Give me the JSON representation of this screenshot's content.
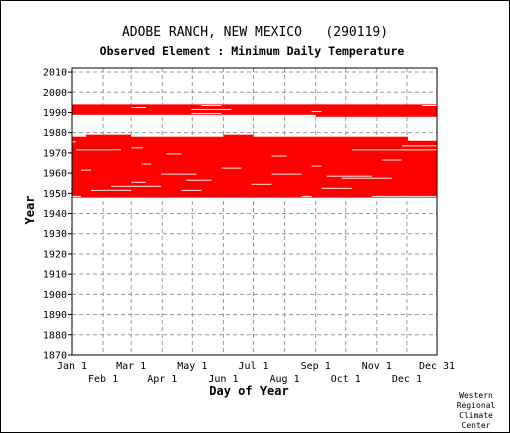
{
  "chart_data": {
    "type": "heatmap",
    "title": "ADOBE RANCH, NEW MEXICO   (290119)",
    "subtitle": "Observed Element : Minimum Daily Temperature",
    "xlabel": "Day of Year",
    "ylabel": "Year",
    "x_range": [
      1,
      365
    ],
    "ylim": [
      1870,
      2012
    ],
    "y_ticks": [
      1870,
      1880,
      1890,
      1900,
      1910,
      1920,
      1930,
      1940,
      1950,
      1960,
      1970,
      1980,
      1990,
      2000,
      2010
    ],
    "x_ticks_top_row": [
      {
        "label": "Jan 1",
        "day": 1
      },
      {
        "label": "Mar 1",
        "day": 60
      },
      {
        "label": "May 1",
        "day": 121
      },
      {
        "label": "Jul 1",
        "day": 182
      },
      {
        "label": "Sep 1",
        "day": 244
      },
      {
        "label": "Nov 1",
        "day": 305
      },
      {
        "label": "Dec 31",
        "day": 365
      }
    ],
    "x_ticks_bottom_row": [
      {
        "label": "Feb 1",
        "day": 32
      },
      {
        "label": "Apr 1",
        "day": 91
      },
      {
        "label": "Jun 1",
        "day": 152
      },
      {
        "label": "Aug 1",
        "day": 213
      },
      {
        "label": "Oct 1",
        "day": 274
      },
      {
        "label": "Dec 1",
        "day": 335
      }
    ],
    "grid": true,
    "data_color": "#ff0000",
    "observed_periods": [
      {
        "start_year": 1948,
        "start_day": 1,
        "end_year": 1948,
        "end_day": 365
      },
      {
        "start_year": 1949,
        "start_day": 1,
        "end_year": 1949,
        "end_day": 365
      },
      {
        "start_year": 1950,
        "start_day": 1,
        "end_year": 1950,
        "end_day": 365
      },
      {
        "start_year": 1951,
        "start_day": 1,
        "end_year": 1951,
        "end_day": 365
      },
      {
        "start_year": 1952,
        "start_day": 1,
        "end_year": 1952,
        "end_day": 365
      },
      {
        "start_year": 1953,
        "start_day": 1,
        "end_year": 1953,
        "end_day": 365
      },
      {
        "start_year": 1954,
        "start_day": 1,
        "end_year": 1954,
        "end_day": 365
      },
      {
        "start_year": 1955,
        "start_day": 1,
        "end_year": 1955,
        "end_day": 365
      },
      {
        "start_year": 1956,
        "start_day": 1,
        "end_year": 1956,
        "end_day": 365
      },
      {
        "start_year": 1957,
        "start_day": 1,
        "end_year": 1957,
        "end_day": 365
      },
      {
        "start_year": 1958,
        "start_day": 1,
        "end_year": 1958,
        "end_day": 365
      },
      {
        "start_year": 1959,
        "start_day": 1,
        "end_year": 1959,
        "end_day": 365
      },
      {
        "start_year": 1960,
        "start_day": 1,
        "end_year": 1960,
        "end_day": 365
      },
      {
        "start_year": 1961,
        "start_day": 1,
        "end_year": 1961,
        "end_day": 365
      },
      {
        "start_year": 1962,
        "start_day": 1,
        "end_year": 1962,
        "end_day": 365
      },
      {
        "start_year": 1963,
        "start_day": 1,
        "end_year": 1963,
        "end_day": 365
      },
      {
        "start_year": 1964,
        "start_day": 1,
        "end_year": 1964,
        "end_day": 365
      },
      {
        "start_year": 1965,
        "start_day": 1,
        "end_year": 1965,
        "end_day": 365
      },
      {
        "start_year": 1966,
        "start_day": 1,
        "end_year": 1966,
        "end_day": 365
      },
      {
        "start_year": 1967,
        "start_day": 1,
        "end_year": 1967,
        "end_day": 365
      },
      {
        "start_year": 1968,
        "start_day": 1,
        "end_year": 1968,
        "end_day": 365
      },
      {
        "start_year": 1969,
        "start_day": 1,
        "end_year": 1969,
        "end_day": 365
      },
      {
        "start_year": 1970,
        "start_day": 1,
        "end_year": 1970,
        "end_day": 365
      },
      {
        "start_year": 1971,
        "start_day": 1,
        "end_year": 1971,
        "end_day": 365
      },
      {
        "start_year": 1972,
        "start_day": 1,
        "end_year": 1972,
        "end_day": 365
      },
      {
        "start_year": 1973,
        "start_day": 1,
        "end_year": 1973,
        "end_day": 365
      },
      {
        "start_year": 1974,
        "start_day": 1,
        "end_year": 1974,
        "end_day": 365
      },
      {
        "start_year": 1975,
        "start_day": 1,
        "end_year": 1975,
        "end_day": 365
      },
      {
        "start_year": 1976,
        "start_day": 1,
        "end_year": 1976,
        "end_day": 336
      },
      {
        "start_year": 1977,
        "start_day": 1,
        "end_year": 1977,
        "end_day": 336
      },
      {
        "start_year": 1978,
        "start_day": 15,
        "end_year": 1978,
        "end_day": 60
      },
      {
        "start_year": 1978,
        "start_day": 152,
        "end_year": 1978,
        "end_day": 182
      },
      {
        "start_year": 1988,
        "start_day": 244,
        "end_year": 1988,
        "end_day": 365
      },
      {
        "start_year": 1989,
        "start_day": 1,
        "end_year": 1989,
        "end_day": 365
      },
      {
        "start_year": 1990,
        "start_day": 1,
        "end_year": 1990,
        "end_day": 365
      },
      {
        "start_year": 1991,
        "start_day": 1,
        "end_year": 1991,
        "end_day": 365
      },
      {
        "start_year": 1992,
        "start_day": 1,
        "end_year": 1992,
        "end_day": 365
      },
      {
        "start_year": 1993,
        "start_day": 1,
        "end_year": 1993,
        "end_day": 365
      }
    ],
    "gaps": [
      {
        "year": 1948,
        "start_day": 1,
        "end_day": 10
      },
      {
        "year": 1948,
        "start_day": 230,
        "end_day": 240
      },
      {
        "year": 1948,
        "start_day": 300,
        "end_day": 365
      },
      {
        "year": 1951,
        "start_day": 20,
        "end_day": 60
      },
      {
        "year": 1951,
        "start_day": 110,
        "end_day": 130
      },
      {
        "year": 1952,
        "start_day": 250,
        "end_day": 280
      },
      {
        "year": 1953,
        "start_day": 40,
        "end_day": 90
      },
      {
        "year": 1954,
        "start_day": 180,
        "end_day": 200
      },
      {
        "year": 1955,
        "start_day": 60,
        "end_day": 75
      },
      {
        "year": 1956,
        "start_day": 115,
        "end_day": 140
      },
      {
        "year": 1957,
        "start_day": 270,
        "end_day": 320
      },
      {
        "year": 1958,
        "start_day": 255,
        "end_day": 300
      },
      {
        "year": 1959,
        "start_day": 90,
        "end_day": 125
      },
      {
        "year": 1959,
        "start_day": 200,
        "end_day": 230
      },
      {
        "year": 1961,
        "start_day": 10,
        "end_day": 20
      },
      {
        "year": 1962,
        "start_day": 150,
        "end_day": 170
      },
      {
        "year": 1963,
        "start_day": 240,
        "end_day": 250
      },
      {
        "year": 1964,
        "start_day": 70,
        "end_day": 80
      },
      {
        "year": 1966,
        "start_day": 310,
        "end_day": 330
      },
      {
        "year": 1968,
        "start_day": 200,
        "end_day": 215
      },
      {
        "year": 1969,
        "start_day": 95,
        "end_day": 110
      },
      {
        "year": 1971,
        "start_day": 5,
        "end_day": 50
      },
      {
        "year": 1971,
        "start_day": 280,
        "end_day": 365
      },
      {
        "year": 1972,
        "start_day": 60,
        "end_day": 72
      },
      {
        "year": 1973,
        "start_day": 330,
        "end_day": 365
      },
      {
        "year": 1975,
        "start_day": 1,
        "end_day": 5
      },
      {
        "year": 1989,
        "start_day": 120,
        "end_day": 150
      },
      {
        "year": 1990,
        "start_day": 240,
        "end_day": 250
      },
      {
        "year": 1991,
        "start_day": 120,
        "end_day": 160
      },
      {
        "year": 1992,
        "start_day": 60,
        "end_day": 75
      },
      {
        "year": 1993,
        "start_day": 130,
        "end_day": 150
      },
      {
        "year": 1993,
        "start_day": 350,
        "end_day": 365
      }
    ]
  },
  "credit": {
    "line1": "Western",
    "line2": "Regional",
    "line3": "Climate",
    "line4": "Center"
  }
}
